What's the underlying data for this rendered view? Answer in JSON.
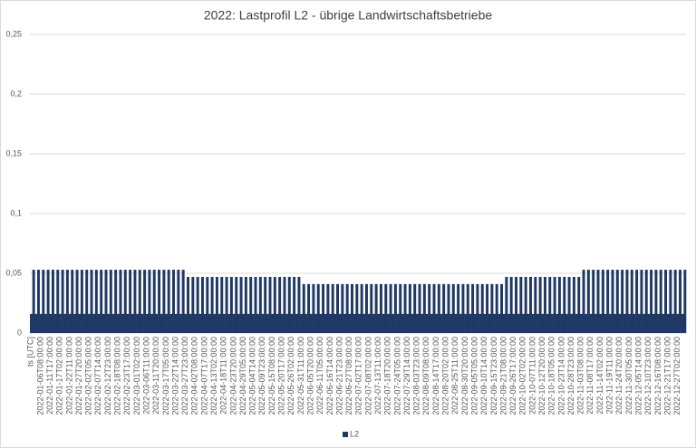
{
  "chart_data": {
    "type": "bar",
    "title": "2022: Lastprofil L2 - übrige Landwirtschaftsbetriebe",
    "categories": [
      "ts [UTC]",
      null,
      null,
      null,
      "2022-01-06T08:00:00",
      null,
      null,
      null,
      "2022-01-11T17:00:00",
      null,
      null,
      null,
      "2022-01-17T02:00:00",
      null,
      null,
      null,
      "2022-01-22T11:00:00",
      null,
      null,
      null,
      "2022-01-27T20:00:00",
      null,
      null,
      null,
      "2022-02-02T05:00:00",
      null,
      null,
      null,
      "2022-02-07T14:00:00",
      null,
      null,
      null,
      "2022-02-12T23:00:00",
      null,
      null,
      null,
      "2022-02-18T08:00:00",
      null,
      null,
      null,
      "2022-02-23T17:00:00",
      null,
      null,
      null,
      "2022-03-01T02:00:00",
      null,
      null,
      null,
      "2022-03-06T11:00:00",
      null,
      null,
      null,
      "2022-03-11T20:00:00",
      null,
      null,
      null,
      "2022-03-17T05:00:00",
      null,
      null,
      null,
      "2022-03-22T14:00:00",
      null,
      null,
      null,
      "2022-03-27T23:00:00",
      null,
      null,
      null,
      "2022-04-02T08:00:00",
      null,
      null,
      null,
      "2022-04-07T17:00:00",
      null,
      null,
      null,
      "2022-04-13T02:00:00",
      null,
      null,
      null,
      "2022-04-18T11:00:00",
      null,
      null,
      null,
      "2022-04-23T20:00:00",
      null,
      null,
      null,
      "2022-04-29T05:00:00",
      null,
      null,
      null,
      "2022-05-04T14:00:00",
      null,
      null,
      null,
      "2022-05-09T23:00:00",
      null,
      null,
      null,
      "2022-05-15T08:00:00",
      null,
      null,
      null,
      "2022-05-20T17:00:00",
      null,
      null,
      null,
      "2022-05-26T02:00:00",
      null,
      null,
      null,
      "2022-05-31T11:00:00",
      null,
      null,
      null,
      "2022-06-05T20:00:00",
      null,
      null,
      null,
      "2022-06-11T05:00:00",
      null,
      null,
      null,
      "2022-06-16T14:00:00",
      null,
      null,
      null,
      "2022-06-21T23:00:00",
      null,
      null,
      null,
      "2022-06-27T08:00:00",
      null,
      null,
      null,
      "2022-07-02T17:00:00",
      null,
      null,
      null,
      "2022-07-08T02:00:00",
      null,
      null,
      null,
      "2022-07-13T11:00:00",
      null,
      null,
      null,
      "2022-07-18T20:00:00",
      null,
      null,
      null,
      "2022-07-24T05:00:00",
      null,
      null,
      null,
      "2022-07-29T14:00:00",
      null,
      null,
      null,
      "2022-08-03T23:00:00",
      null,
      null,
      null,
      "2022-08-09T08:00:00",
      null,
      null,
      null,
      "2022-08-14T17:00:00",
      null,
      null,
      null,
      "2022-08-20T02:00:00",
      null,
      null,
      null,
      "2022-08-25T11:00:00",
      null,
      null,
      null,
      "2022-08-30T20:00:00",
      null,
      null,
      null,
      "2022-09-05T05:00:00",
      null,
      null,
      null,
      "2022-09-10T14:00:00",
      null,
      null,
      null,
      "2022-09-15T23:00:00",
      null,
      null,
      null,
      "2022-09-21T08:00:00",
      null,
      null,
      null,
      "2022-09-26T17:00:00",
      null,
      null,
      null,
      "2022-10-02T02:00:00",
      null,
      null,
      null,
      "2022-10-07T11:00:00",
      null,
      null,
      null,
      "2022-10-12T20:00:00",
      null,
      null,
      null,
      "2022-10-18T05:00:00",
      null,
      null,
      null,
      "2022-10-23T14:00:00",
      null,
      null,
      null,
      "2022-10-28T23:00:00",
      null,
      null,
      null,
      "2022-11-03T08:00:00",
      null,
      null,
      null,
      "2022-11-08T17:00:00",
      null,
      null,
      null,
      "2022-11-14T02:00:00",
      null,
      null,
      null,
      "2022-11-19T11:00:00",
      null,
      null,
      null,
      "2022-11-24T20:00:00",
      null,
      null,
      null,
      "2022-11-30T05:00:00",
      null,
      null,
      null,
      "2022-12-05T14:00:00",
      null,
      null,
      null,
      "2022-12-10T23:00:00",
      null,
      null,
      null,
      "2022-12-16T08:00:00",
      null,
      null,
      null,
      "2022-12-21T17:00:00",
      null,
      null,
      null,
      "2022-12-27T02:00:00",
      null,
      null,
      null
    ],
    "series": [
      {
        "name": "L2",
        "color": "#203864",
        "values": [
          0.016,
          0.053,
          0.016,
          0.053,
          0.016,
          0.053,
          0.016,
          0.053,
          0.016,
          0.053,
          0.016,
          0.053,
          0.016,
          0.053,
          0.016,
          0.053,
          0.016,
          0.053,
          0.016,
          0.053,
          0.016,
          0.053,
          0.016,
          0.053,
          0.016,
          0.053,
          0.016,
          0.053,
          0.016,
          0.053,
          0.016,
          0.053,
          0.016,
          0.053,
          0.016,
          0.053,
          0.016,
          0.053,
          0.016,
          0.053,
          0.016,
          0.053,
          0.016,
          0.053,
          0.016,
          0.053,
          0.016,
          0.053,
          0.016,
          0.053,
          0.016,
          0.053,
          0.016,
          0.053,
          0.016,
          0.053,
          0.016,
          0.053,
          0.016,
          0.053,
          0.016,
          0.053,
          0.016,
          0.053,
          0.016,
          0.047,
          0.016,
          0.047,
          0.016,
          0.047,
          0.016,
          0.047,
          0.016,
          0.047,
          0.016,
          0.047,
          0.016,
          0.047,
          0.016,
          0.047,
          0.016,
          0.047,
          0.016,
          0.047,
          0.016,
          0.047,
          0.016,
          0.047,
          0.016,
          0.047,
          0.016,
          0.047,
          0.016,
          0.047,
          0.016,
          0.047,
          0.016,
          0.047,
          0.016,
          0.047,
          0.016,
          0.047,
          0.016,
          0.047,
          0.016,
          0.047,
          0.016,
          0.047,
          0.016,
          0.047,
          0.016,
          0.047,
          0.016,
          0.041,
          0.016,
          0.041,
          0.016,
          0.041,
          0.016,
          0.041,
          0.016,
          0.041,
          0.016,
          0.041,
          0.016,
          0.041,
          0.016,
          0.041,
          0.016,
          0.041,
          0.016,
          0.041,
          0.016,
          0.041,
          0.016,
          0.041,
          0.016,
          0.041,
          0.016,
          0.041,
          0.016,
          0.041,
          0.016,
          0.041,
          0.016,
          0.041,
          0.016,
          0.041,
          0.016,
          0.041,
          0.016,
          0.041,
          0.016,
          0.041,
          0.016,
          0.041,
          0.016,
          0.041,
          0.016,
          0.041,
          0.016,
          0.041,
          0.016,
          0.041,
          0.016,
          0.041,
          0.016,
          0.041,
          0.016,
          0.041,
          0.016,
          0.041,
          0.016,
          0.041,
          0.016,
          0.041,
          0.016,
          0.041,
          0.016,
          0.041,
          0.016,
          0.041,
          0.016,
          0.041,
          0.016,
          0.041,
          0.016,
          0.041,
          0.016,
          0.041,
          0.016,
          0.041,
          0.016,
          0.041,
          0.016,
          0.041,
          0.016,
          0.047,
          0.016,
          0.047,
          0.016,
          0.047,
          0.016,
          0.047,
          0.016,
          0.047,
          0.016,
          0.047,
          0.016,
          0.047,
          0.016,
          0.047,
          0.016,
          0.047,
          0.016,
          0.047,
          0.016,
          0.047,
          0.016,
          0.047,
          0.016,
          0.047,
          0.016,
          0.047,
          0.016,
          0.047,
          0.016,
          0.047,
          0.016,
          0.053,
          0.016,
          0.053,
          0.016,
          0.053,
          0.016,
          0.053,
          0.016,
          0.053,
          0.016,
          0.053,
          0.016,
          0.053,
          0.016,
          0.053,
          0.016,
          0.053,
          0.016,
          0.053,
          0.016,
          0.053,
          0.016,
          0.053,
          0.016,
          0.053,
          0.016,
          0.053,
          0.016,
          0.053,
          0.016,
          0.053,
          0.016,
          0.053,
          0.016,
          0.053,
          0.016,
          0.053,
          0.016,
          0.053,
          0.016,
          0.053,
          0.016,
          0.053
        ]
      }
    ],
    "ylim": [
      0,
      0.25
    ],
    "yticks": [
      0,
      {
        "value": 0.05,
        "label": "0,05"
      },
      {
        "value": 0.1,
        "label": "0,1"
      },
      {
        "value": 0.15,
        "label": "0,15"
      },
      {
        "value": 0.2,
        "label": "0,2"
      },
      {
        "value": 0.25,
        "label": "0,25"
      }
    ],
    "grid": true,
    "legend": "bottom"
  }
}
